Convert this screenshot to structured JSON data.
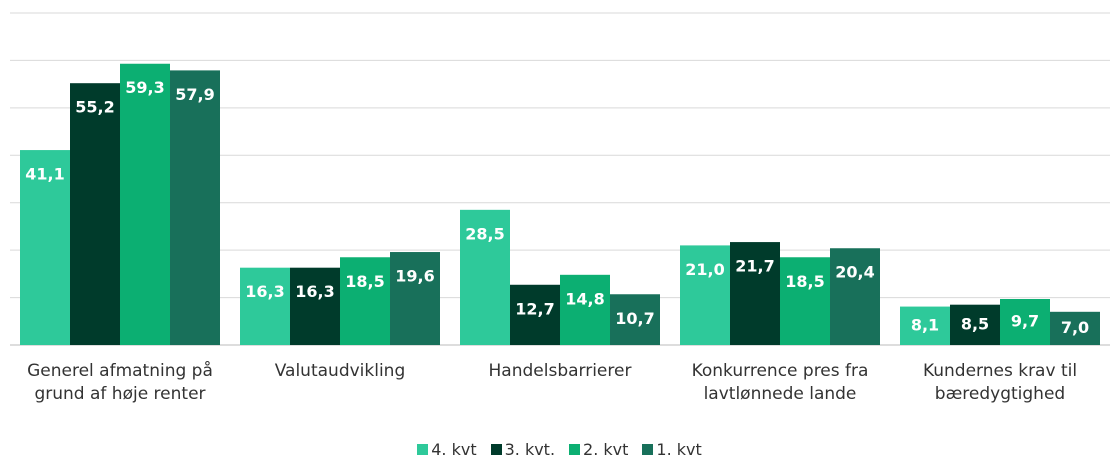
{
  "chart_data": {
    "type": "bar",
    "categories": [
      "Generel afmatning på grund af høje renter",
      "Valutaudvikling",
      "Handelsbarrierer",
      "Konkurrence pres fra lavtlønnede lande",
      "Kundernes krav til bæredygtighed"
    ],
    "series": [
      {
        "name": "4. kvt",
        "color": "#2ec99a",
        "values": [
          41.1,
          16.3,
          28.5,
          21.0,
          8.1
        ],
        "value_labels": [
          "41,1",
          "16,3",
          "28,5",
          "21,0",
          "8,1"
        ]
      },
      {
        "name": "3. kvt.",
        "color": "#003b2b",
        "values": [
          55.2,
          16.3,
          12.7,
          21.7,
          8.5
        ],
        "value_labels": [
          "55,2",
          "16,3",
          "12,7",
          "21,7",
          "8,5"
        ]
      },
      {
        "name": "2. kvt",
        "color": "#0caf72",
        "values": [
          59.3,
          18.5,
          14.8,
          18.5,
          9.7
        ],
        "value_labels": [
          "59,3",
          "18,5",
          "14,8",
          "18,5",
          "9,7"
        ]
      },
      {
        "name": "1. kvt",
        "color": "#18705a",
        "values": [
          57.9,
          19.6,
          10.7,
          20.4,
          7.0
        ],
        "value_labels": [
          "57,9",
          "19,6",
          "10,7",
          "20,4",
          "7,0"
        ]
      }
    ],
    "ylim": [
      0,
      70
    ],
    "yticks": [
      0,
      10,
      20,
      30,
      40,
      50,
      60,
      70
    ],
    "grid": true,
    "legend": "bottom"
  }
}
